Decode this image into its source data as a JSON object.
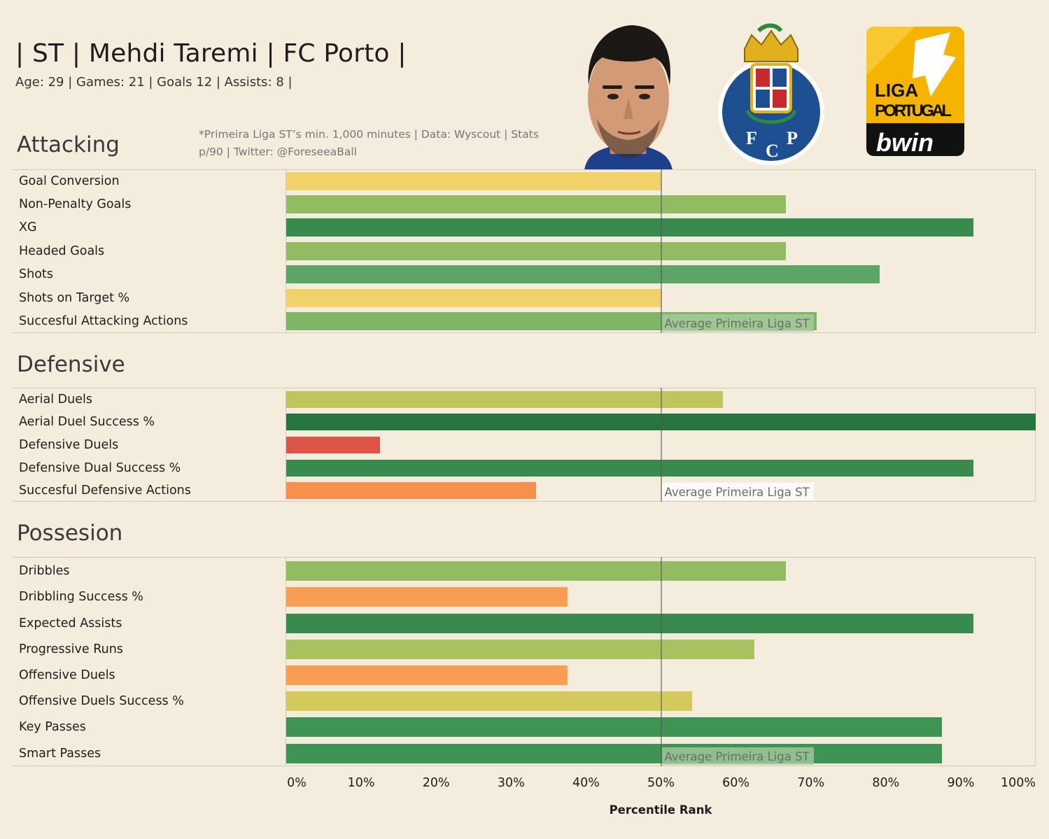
{
  "header": {
    "title": "| ST | Mehdi Taremi | FC Porto |",
    "subtitle": "Age: 29 | Games: 21 | Goals 12 | Assists: 8 |",
    "note": "*Primeira Liga ST’s  min. 1,000 minutes | Data: Wyscout | Stats p/90 | Twitter: @ForeseeaBall"
  },
  "logos": {
    "club_initials": [
      "F",
      "C",
      "P"
    ],
    "league_line1": "LIGA",
    "league_line2": "PORTUGAL",
    "league_sponsor": "bwin"
  },
  "colors": {
    "background": "#f4ecdc",
    "red": "#db5446",
    "orange": "#f7954f",
    "yellow": "#f2d16a",
    "olive_yellow": "#d4c95c",
    "yellow_green": "#bfc45c",
    "light_green": "#93bb61",
    "mid_green": "#5ba666",
    "green": "#3e9355",
    "dark_green": "#398a4e",
    "darkest_green": "#26743f"
  },
  "chart_data": {
    "type": "bar",
    "orientation": "horizontal",
    "xlabel": "Percentile Rank",
    "xlim": [
      0,
      100
    ],
    "xticks": [
      "0%",
      "10%",
      "20%",
      "30%",
      "40%",
      "50%",
      "60%",
      "70%",
      "80%",
      "90%",
      "100%"
    ],
    "reference_line": {
      "value": 50,
      "label": "Average Primeira Liga ST"
    },
    "sections": [
      {
        "name": "Attacking",
        "metrics": [
          {
            "label": "Goal Conversion",
            "value": 50,
            "color": "#f2d16a"
          },
          {
            "label": "Non-Penalty Goals",
            "value": 66.7,
            "color": "#93bb61"
          },
          {
            "label": "XG",
            "value": 91.7,
            "color": "#398a4e"
          },
          {
            "label": "Headed Goals",
            "value": 66.7,
            "color": "#93bb61"
          },
          {
            "label": "Shots",
            "value": 79.2,
            "color": "#5ba666"
          },
          {
            "label": "Shots on Target %",
            "value": 50,
            "color": "#f2d16a"
          },
          {
            "label": "Succesful Attacking Actions",
            "value": 70.8,
            "color": "#7fb563"
          }
        ]
      },
      {
        "name": "Defensive",
        "metrics": [
          {
            "label": "Aerial Duels",
            "value": 58.3,
            "color": "#bfc45c"
          },
          {
            "label": "Aerial Duel Success %",
            "value": 100,
            "color": "#26743f"
          },
          {
            "label": "Defensive Duels",
            "value": 12.5,
            "color": "#db5446"
          },
          {
            "label": "Defensive Dual Success %",
            "value": 91.7,
            "color": "#398a4e"
          },
          {
            "label": "Succesful Defensive Actions",
            "value": 33.3,
            "color": "#f7904c"
          }
        ]
      },
      {
        "name": "Possesion",
        "metrics": [
          {
            "label": "Dribbles",
            "value": 66.7,
            "color": "#93bb61"
          },
          {
            "label": "Dribbling Success %",
            "value": 37.5,
            "color": "#f89d52"
          },
          {
            "label": "Expected Assists",
            "value": 91.7,
            "color": "#398a4e"
          },
          {
            "label": "Progressive Runs",
            "value": 62.5,
            "color": "#a9c25f"
          },
          {
            "label": "Offensive Duels",
            "value": 37.5,
            "color": "#f89d52"
          },
          {
            "label": "Offensive Duels Success %",
            "value": 54.2,
            "color": "#d4c95c"
          },
          {
            "label": "Key Passes",
            "value": 87.5,
            "color": "#3e9355"
          },
          {
            "label": "Smart Passes",
            "value": 87.5,
            "color": "#3e9355"
          }
        ]
      }
    ]
  }
}
